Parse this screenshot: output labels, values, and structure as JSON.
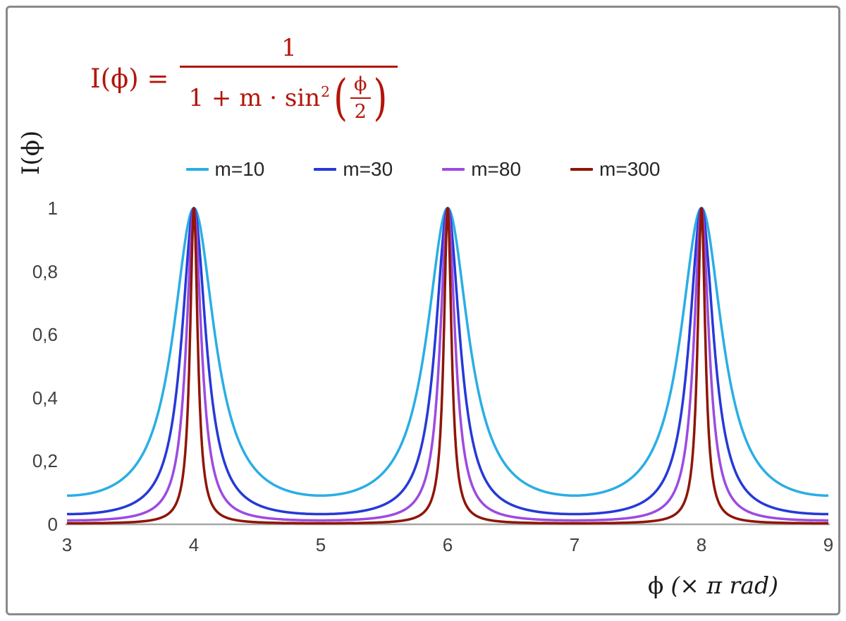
{
  "colors": {
    "formula": "#b3150a",
    "axis": "#a6a6a6",
    "tick_text": "#404040",
    "legend_text": "#262626",
    "frame_border": "#8a8a8a",
    "background": "#ffffff"
  },
  "formula": {
    "lhs": "I(ϕ) =",
    "numerator": "1",
    "den_prefix": "1 + m · sin",
    "den_sup": "2",
    "paren_open": "(",
    "inner_num": "ϕ",
    "inner_den": "2",
    "paren_close": ")"
  },
  "chart_data": {
    "type": "line",
    "formula_text": "I(ϕ) = 1 / (1 + m · sin²(ϕ/2))",
    "function": "I(x) = 1 / (1 + m * sin(π·x/2)^2), x in units of π rad",
    "grid": false,
    "legend_position": "top-center",
    "peaks_at_x": [
      4,
      6,
      8
    ],
    "peak_value": 1,
    "x": {
      "label_phi": "ϕ",
      "label_units": "(× π rad)",
      "min": 3,
      "max": 9,
      "ticks": [
        {
          "value": 3,
          "label": "3"
        },
        {
          "value": 4,
          "label": "4"
        },
        {
          "value": 5,
          "label": "5"
        },
        {
          "value": 6,
          "label": "6"
        },
        {
          "value": 7,
          "label": "7"
        },
        {
          "value": 8,
          "label": "8"
        },
        {
          "value": 9,
          "label": "9"
        }
      ]
    },
    "y": {
      "label": "I(ϕ)",
      "min": 0,
      "max": 1,
      "ticks": [
        {
          "value": 0,
          "label": "0"
        },
        {
          "value": 0.2,
          "label": "0,2"
        },
        {
          "value": 0.4,
          "label": "0,4"
        },
        {
          "value": 0.6,
          "label": "0,6"
        },
        {
          "value": 0.8,
          "label": "0,8"
        },
        {
          "value": 1,
          "label": "1"
        }
      ]
    },
    "series": [
      {
        "name": "m=10",
        "m": 10,
        "color": "#2aaee4",
        "min_value": 0.0909
      },
      {
        "name": "m=30",
        "m": 30,
        "color": "#2639d8",
        "min_value": 0.0323
      },
      {
        "name": "m=80",
        "m": 80,
        "color": "#9c4be0",
        "min_value": 0.0123
      },
      {
        "name": "m=300",
        "m": 300,
        "color": "#8e1607",
        "min_value": 0.0033
      }
    ]
  }
}
